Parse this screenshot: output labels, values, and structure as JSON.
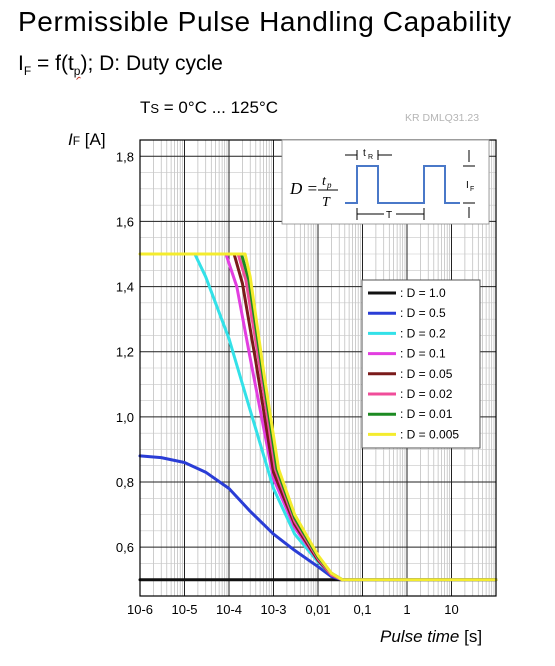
{
  "header": {
    "title": "Permissible Pulse Handling Capability",
    "subtitle_pre": "I",
    "subtitle_sub1": "F",
    "subtitle_mid": " = f(t",
    "subtitle_sub2": "p",
    "subtitle_post": "); D: Duty cycle",
    "temp_pre": "T",
    "temp_sub": "S",
    "temp_post": " = 0°C ... 125°C",
    "code": "KR DMLQ31.23",
    "y_unit_i": "I",
    "y_unit_sub": "F",
    "y_unit_post": " [A]",
    "x_unit_ital": "Pulse time",
    "x_unit_post": " [s]"
  },
  "inset": {
    "formula_lhs": "D =",
    "formula_num": "t",
    "formula_num_sub": "p",
    "formula_den": "T",
    "label_tp": "t",
    "label_tp_sub": "R",
    "label_T": "T",
    "label_I": "I",
    "label_I_sub": "F"
  },
  "chart_data": {
    "type": "line",
    "x_scale": "log",
    "xlim": [
      1e-06,
      100
    ],
    "ylim": [
      0.45,
      1.85
    ],
    "x_ticks": [
      {
        "value": 1e-06,
        "label_base": "10",
        "label_exp": "-6"
      },
      {
        "value": 1e-05,
        "label_base": "10",
        "label_exp": "-5"
      },
      {
        "value": 0.0001,
        "label_base": "10",
        "label_exp": "-4"
      },
      {
        "value": 0.001,
        "label_base": "10",
        "label_exp": "-3"
      },
      {
        "value": 0.01,
        "label": "0,01"
      },
      {
        "value": 0.1,
        "label": "0,1"
      },
      {
        "value": 1,
        "label": "1"
      },
      {
        "value": 10,
        "label": "10"
      }
    ],
    "y_ticks": [
      {
        "value": 0.6,
        "label": "0,6"
      },
      {
        "value": 0.8,
        "label": "0,8"
      },
      {
        "value": 1.0,
        "label": "1,0"
      },
      {
        "value": 1.2,
        "label": "1,2"
      },
      {
        "value": 1.4,
        "label": "1,4"
      },
      {
        "value": 1.6,
        "label": "1,6"
      },
      {
        "value": 1.8,
        "label": "1,8"
      }
    ],
    "grid": true,
    "legend_position": "right",
    "series": [
      {
        "name": ": D  =  1.0",
        "color": "#111111",
        "points": [
          [
            1e-06,
            0.5
          ],
          [
            100,
            0.5
          ]
        ]
      },
      {
        "name": ": D  =  0.5",
        "color": "#2a3dd6",
        "points": [
          [
            1e-06,
            0.88
          ],
          [
            3e-06,
            0.875
          ],
          [
            1e-05,
            0.86
          ],
          [
            3e-05,
            0.83
          ],
          [
            0.0001,
            0.78
          ],
          [
            0.0003,
            0.71
          ],
          [
            0.001,
            0.64
          ],
          [
            0.003,
            0.59
          ],
          [
            0.01,
            0.54
          ],
          [
            0.02,
            0.51
          ],
          [
            0.035,
            0.5
          ],
          [
            100,
            0.5
          ]
        ]
      },
      {
        "name": ": D  =  0.2",
        "color": "#33e1e8",
        "points": [
          [
            1.7e-05,
            1.5
          ],
          [
            3e-05,
            1.43
          ],
          [
            0.0001,
            1.24
          ],
          [
            0.0003,
            1.02
          ],
          [
            0.001,
            0.78
          ],
          [
            0.003,
            0.64
          ],
          [
            0.01,
            0.555
          ],
          [
            0.02,
            0.515
          ],
          [
            0.035,
            0.5
          ]
        ]
      },
      {
        "name": ": D  =  0.1",
        "color": "#e23ee0",
        "points": [
          [
            8.5e-05,
            1.5
          ],
          [
            0.00015,
            1.4
          ],
          [
            0.0003,
            1.18
          ],
          [
            0.001,
            0.81
          ],
          [
            0.003,
            0.66
          ],
          [
            0.01,
            0.56
          ],
          [
            0.02,
            0.515
          ],
          [
            0.035,
            0.5
          ]
        ]
      },
      {
        "name": ": D  =  0.05",
        "color": "#7a1a1a",
        "points": [
          [
            0.00013,
            1.5
          ],
          [
            0.0002,
            1.41
          ],
          [
            0.0004,
            1.17
          ],
          [
            0.001,
            0.83
          ],
          [
            0.003,
            0.67
          ],
          [
            0.01,
            0.56
          ],
          [
            0.02,
            0.515
          ],
          [
            0.035,
            0.5
          ]
        ]
      },
      {
        "name": ": D  =  0.02",
        "color": "#f04d9a",
        "points": [
          [
            0.00016,
            1.5
          ],
          [
            0.00024,
            1.42
          ],
          [
            0.0005,
            1.15
          ],
          [
            0.0011,
            0.84
          ],
          [
            0.003,
            0.68
          ],
          [
            0.01,
            0.565
          ],
          [
            0.02,
            0.515
          ],
          [
            0.035,
            0.5
          ]
        ]
      },
      {
        "name": ": D  =  0.01",
        "color": "#1c8a22",
        "points": [
          [
            0.00019,
            1.5
          ],
          [
            0.00028,
            1.42
          ],
          [
            0.00055,
            1.15
          ],
          [
            0.0012,
            0.84
          ],
          [
            0.003,
            0.69
          ],
          [
            0.01,
            0.57
          ],
          [
            0.02,
            0.52
          ],
          [
            0.035,
            0.5
          ]
        ]
      },
      {
        "name": ": D  =  0.005",
        "color": "#f4ec2e",
        "points": [
          [
            1e-06,
            1.5
          ],
          [
            0.00023,
            1.5
          ],
          [
            0.0003,
            1.43
          ],
          [
            0.0006,
            1.14
          ],
          [
            0.0013,
            0.84
          ],
          [
            0.003,
            0.7
          ],
          [
            0.01,
            0.575
          ],
          [
            0.02,
            0.52
          ],
          [
            0.035,
            0.5
          ],
          [
            100,
            0.5
          ]
        ]
      }
    ]
  }
}
